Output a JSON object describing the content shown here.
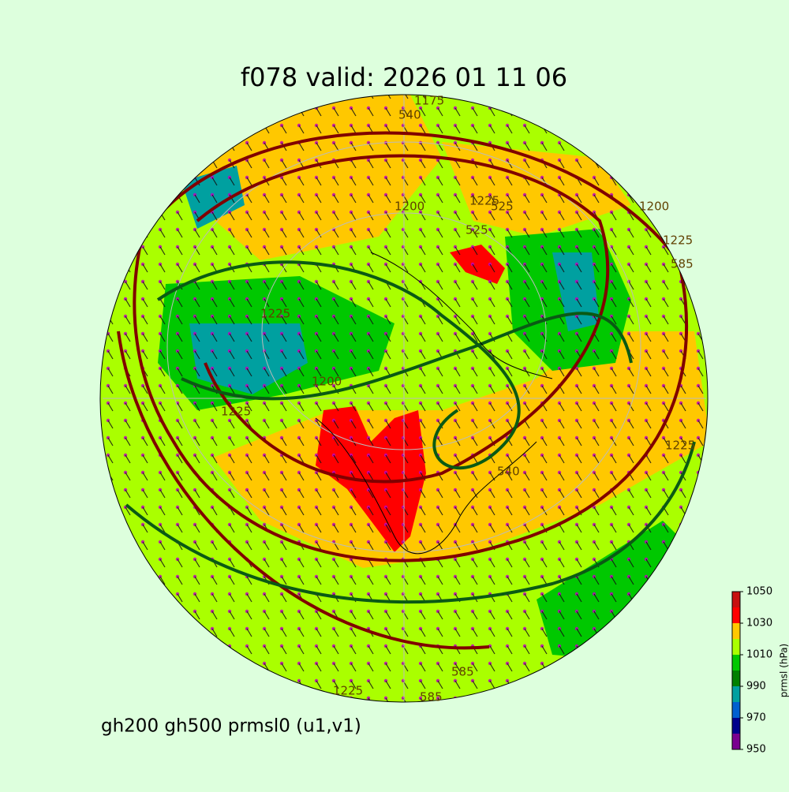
{
  "title": "f078 valid:   2026 01 11 06",
  "caption": "gh200 gh500 prmsl0 (u1,v1)",
  "colorbar": {
    "label": "prmsl (hPa)",
    "levels": [
      950,
      960,
      970,
      980,
      990,
      1000,
      1010,
      1020,
      1030,
      1040,
      1050
    ],
    "colors": [
      "#7a0090",
      "#00008c",
      "#0060d0",
      "#00a0a0",
      "#008000",
      "#00c800",
      "#aaff00",
      "#ffc800",
      "#ff0000",
      "#c81010"
    ],
    "ticks": [
      950,
      970,
      990,
      1010,
      1030,
      1050
    ]
  },
  "contour_labels": [
    1175,
    540,
    1200,
    1225,
    525,
    525,
    1200,
    1225,
    585,
    1225,
    1200,
    1225,
    540,
    1225,
    585,
    585,
    1225
  ]
}
